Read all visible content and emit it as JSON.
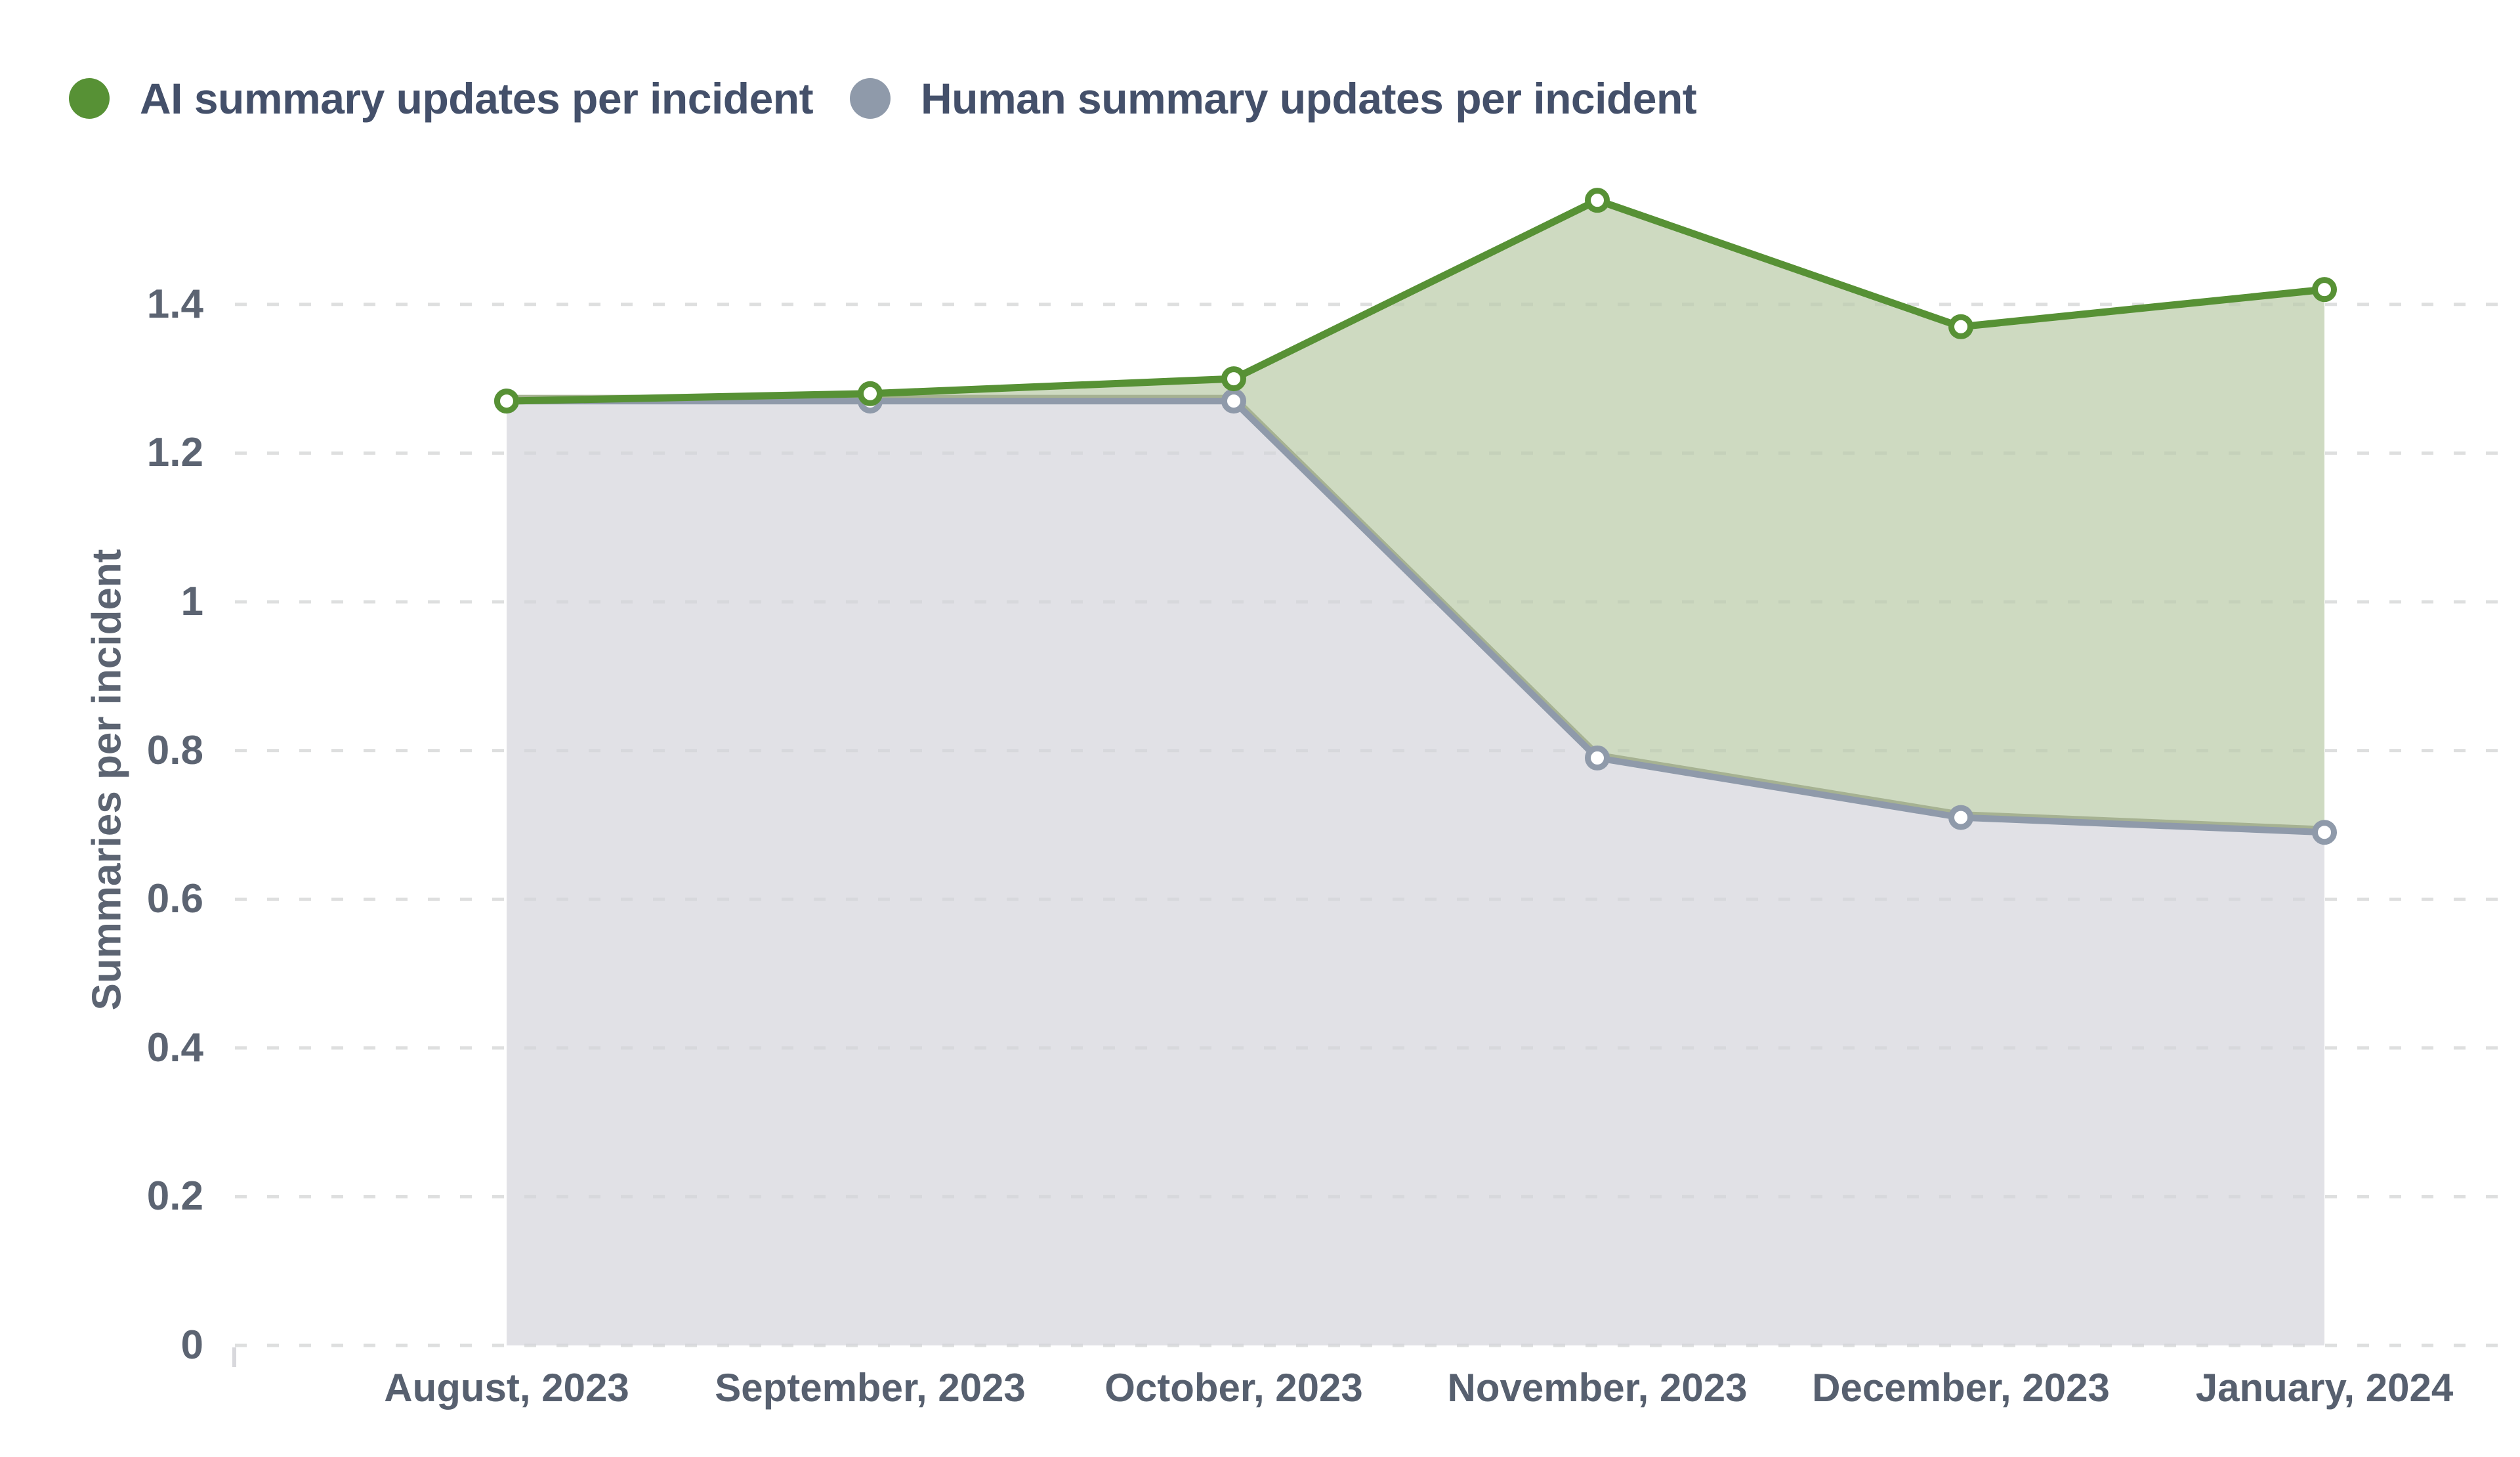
{
  "legend": {
    "items": [
      {
        "id": "ai",
        "label": "AI summary updates per incident",
        "color": "#579135"
      },
      {
        "id": "human",
        "label": "Human summary updates per incident",
        "color": "#8f9aaa"
      }
    ]
  },
  "y_axis": {
    "title": "Summaries per incident",
    "tick_labels": [
      "0",
      "0.2",
      "0.4",
      "0.6",
      "0.8",
      "1",
      "1.2",
      "1.4"
    ]
  },
  "chart_data": {
    "type": "area",
    "title": "",
    "categories": [
      "August, 2023",
      "September, 2023",
      "October, 2023",
      "November, 2023",
      "December, 2023",
      "January, 2024"
    ],
    "series": [
      {
        "name": "AI summary updates per incident",
        "values": [
          1.27,
          1.28,
          1.3,
          1.54,
          1.37,
          1.42
        ],
        "line_color": "#579135",
        "fill_color": "#cedac1",
        "marker": "ring"
      },
      {
        "name": "Human summary updates per incident",
        "values": [
          1.27,
          1.27,
          1.27,
          0.79,
          0.71,
          0.69
        ],
        "line_color": "#8f9aaa",
        "fill_color": "#e1e1e6",
        "marker": "ring"
      }
    ],
    "xlabel": "",
    "ylabel": "Summaries per incident",
    "ylim": [
      0,
      1.6
    ],
    "ytick_values": [
      0,
      0.2,
      0.4,
      0.6,
      0.8,
      1,
      1.2,
      1.4
    ],
    "grid": "dashed-horizontal",
    "grid_color": "#e9e9e9",
    "legend_position": "top-left",
    "area_mode": "green fills the gap between AI line and Human line; gray fills from Human line down to zero"
  },
  "colors": {
    "background": "#ffffff",
    "legend_text": "#44506a",
    "tick_text": "#5c6472",
    "x_label_text": "#57606f",
    "green_line": "#579135",
    "green_fill": "#cedac1",
    "green_fill_edge": "#a6b292",
    "gray_line": "#8f9aaa",
    "gray_fill": "#e1e1e6",
    "gridline": "#e9e9e9"
  }
}
